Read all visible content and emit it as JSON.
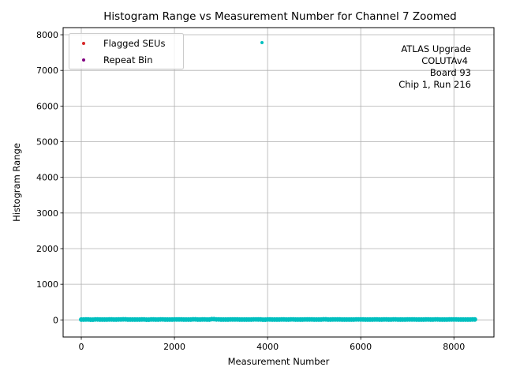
{
  "chart_data": {
    "type": "scatter",
    "title": "Histogram Range vs Measurement Number for Channel 7 Zoomed",
    "xlabel": "Measurement Number",
    "ylabel": "Histogram Range",
    "xlim": [
      -390,
      8860
    ],
    "ylim": [
      -480,
      8200
    ],
    "xticks": [
      0,
      2000,
      4000,
      6000,
      8000
    ],
    "yticks": [
      0,
      1000,
      2000,
      3000,
      4000,
      5000,
      6000,
      7000,
      8000
    ],
    "grid": true,
    "legend": {
      "placement": "top-left",
      "entries": [
        {
          "label": "Flagged SEUs",
          "color": "#d62728"
        },
        {
          "label": "Repeat Bin",
          "color": "#800080"
        }
      ]
    },
    "annotation": [
      "ATLAS Upgrade",
      "COLUTAv4",
      "Board 93",
      "Chip 1, Run 216"
    ],
    "series": [
      {
        "name": "Histogram Range",
        "color": "#00bfbf",
        "x_start": 0,
        "x_step": 100,
        "y": [
          10,
          12,
          8,
          14,
          11,
          9,
          13,
          10,
          12,
          15,
          9,
          11,
          10,
          13,
          8,
          12,
          11,
          14,
          10,
          9,
          12,
          13,
          11,
          10,
          15,
          9,
          12,
          10,
          20,
          14,
          11,
          10,
          13,
          12,
          9,
          11,
          10,
          14,
          12,
          8,
          13,
          11,
          10,
          12,
          9,
          14,
          11,
          10,
          13,
          12,
          9,
          11,
          15,
          10,
          12,
          13,
          9,
          11,
          10,
          14,
          12,
          11,
          9,
          13,
          10,
          12,
          11,
          14,
          10,
          9,
          12,
          13,
          11,
          10,
          12,
          9,
          14,
          11,
          10,
          13,
          12,
          9,
          11,
          10,
          12
        ],
        "outliers": [
          {
            "x": 3880,
            "y": 7780
          }
        ]
      }
    ]
  }
}
